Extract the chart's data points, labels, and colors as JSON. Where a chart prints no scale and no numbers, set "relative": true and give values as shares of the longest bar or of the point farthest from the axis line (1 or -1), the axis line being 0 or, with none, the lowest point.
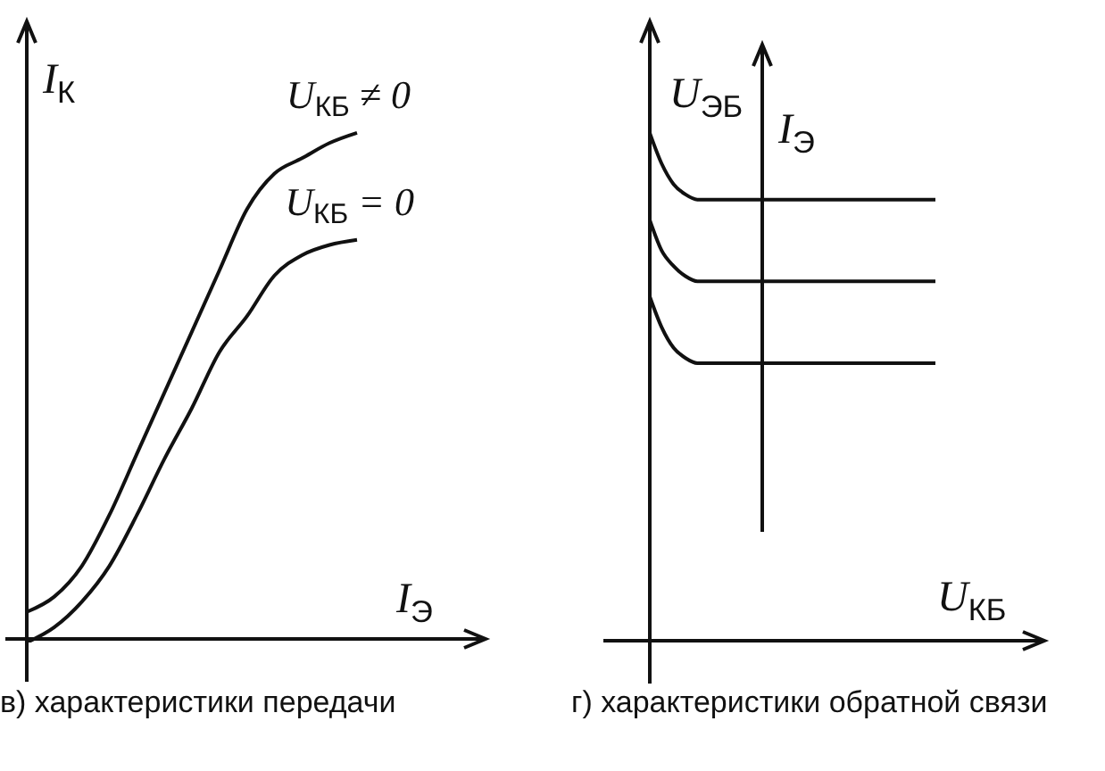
{
  "chart_data": [
    {
      "type": "line",
      "title": "в) характеристики передачи",
      "xlabel": "I$_{Э}$",
      "ylabel": "I$_{К}$",
      "relative": true,
      "marker": "none",
      "categories": [
        null,
        null,
        null,
        null,
        null,
        null,
        null,
        null,
        null,
        null,
        null,
        null,
        null
      ],
      "series": [
        {
          "name": "U$_{КБ}$ ≠ 0",
          "color": "#111111",
          "values": [
            0.06,
            0.09,
            0.15,
            0.25,
            0.37,
            0.49,
            0.61,
            0.73,
            0.85,
            0.92,
            0.95,
            0.98,
            1
          ]
        },
        {
          "name": "U$_{КБ}$ = 0",
          "color": "#111111",
          "values": [
            0,
            0.03,
            0.08,
            0.15,
            0.25,
            0.36,
            0.46,
            0.57,
            0.64,
            0.72,
            0.76,
            0.78,
            0.79
          ]
        }
      ]
    },
    {
      "type": "line",
      "title": "г) характеристики обратной связи",
      "xlabel": "U$_{КБ}$",
      "ylabel": "U$_{ЭБ}$",
      "annotations": [
        "I$_{Э}$"
      ],
      "relative": true,
      "marker": "none",
      "categories": [
        null,
        null,
        null,
        null,
        null,
        null,
        null,
        null,
        null,
        null,
        null,
        null,
        null,
        null,
        null,
        null,
        null,
        null,
        null,
        null,
        null,
        null,
        null,
        null,
        null
      ],
      "series": [
        {
          "color": "#111111",
          "values": [
            1,
            0.94,
            0.9,
            0.88,
            0.87,
            0.87,
            0.87,
            0.87,
            0.87,
            0.87,
            0.87,
            0.87,
            0.87,
            0.87,
            0.87,
            0.87,
            0.87,
            0.87,
            0.87,
            0.87,
            0.87,
            0.87,
            0.87,
            0.87,
            0.87
          ]
        },
        {
          "color": "#111111",
          "values": [
            0.83,
            0.77,
            0.74,
            0.72,
            0.71,
            0.71,
            0.71,
            0.71,
            0.71,
            0.71,
            0.71,
            0.71,
            0.71,
            0.71,
            0.71,
            0.71,
            0.71,
            0.71,
            0.71,
            0.71,
            0.71,
            0.71,
            0.71,
            0.71,
            0.71
          ]
        },
        {
          "color": "#111111",
          "values": [
            0.68,
            0.62,
            0.58,
            0.56,
            0.55,
            0.55,
            0.55,
            0.55,
            0.55,
            0.55,
            0.55,
            0.55,
            0.55,
            0.55,
            0.55,
            0.55,
            0.55,
            0.55,
            0.55,
            0.55,
            0.55,
            0.55,
            0.55,
            0.55,
            0.55
          ]
        }
      ]
    }
  ]
}
